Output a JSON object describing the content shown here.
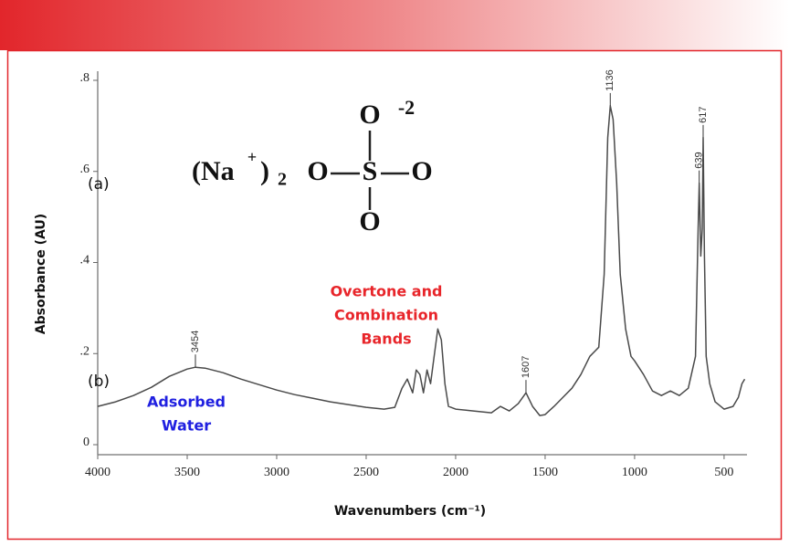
{
  "chart_data": {
    "type": "line",
    "xlabel": "Wavenumbers (cm⁻¹)",
    "ylabel": "Absorbance (AU)",
    "xlim": [
      4000,
      372
    ],
    "ylim": [
      -0.022,
      0.82
    ],
    "xticks": [
      4000,
      3500,
      3000,
      2500,
      2000,
      1500,
      1000,
      500
    ],
    "yticks": [
      0,
      {
        "value": 0.2,
        "label": ".2"
      },
      {
        "value": 0.4,
        "label": ".4"
      },
      {
        "value": 0.6,
        "label": ".6"
      },
      {
        "value": 0.8,
        "label": ".8"
      }
    ],
    "x": [
      4000,
      3900,
      3800,
      3700,
      3600,
      3500,
      3454,
      3400,
      3300,
      3200,
      3100,
      3000,
      2900,
      2800,
      2700,
      2600,
      2500,
      2400,
      2340,
      2300,
      2270,
      2240,
      2220,
      2200,
      2180,
      2160,
      2140,
      2120,
      2100,
      2080,
      2060,
      2040,
      2000,
      1900,
      1800,
      1750,
      1700,
      1650,
      1607,
      1570,
      1530,
      1500,
      1450,
      1400,
      1350,
      1300,
      1250,
      1200,
      1170,
      1150,
      1136,
      1120,
      1100,
      1080,
      1050,
      1020,
      1000,
      950,
      900,
      850,
      800,
      750,
      700,
      660,
      645,
      639,
      630,
      622,
      617,
      610,
      600,
      580,
      550,
      500,
      450,
      420,
      400,
      385
    ],
    "series": [
      {
        "color": "#4a4a4a",
        "values": [
          0.084,
          0.094,
          0.108,
          0.126,
          0.15,
          0.166,
          0.17,
          0.168,
          0.158,
          0.144,
          0.132,
          0.12,
          0.11,
          0.102,
          0.094,
          0.088,
          0.082,
          0.078,
          0.082,
          0.124,
          0.144,
          0.114,
          0.164,
          0.154,
          0.114,
          0.164,
          0.134,
          0.194,
          0.254,
          0.23,
          0.134,
          0.084,
          0.078,
          0.074,
          0.07,
          0.084,
          0.074,
          0.09,
          0.114,
          0.084,
          0.064,
          0.066,
          0.084,
          0.104,
          0.124,
          0.154,
          0.194,
          0.214,
          0.374,
          0.674,
          0.744,
          0.714,
          0.574,
          0.374,
          0.254,
          0.194,
          0.184,
          0.154,
          0.118,
          0.108,
          0.118,
          0.108,
          0.124,
          0.194,
          0.474,
          0.574,
          0.414,
          0.474,
          0.674,
          0.414,
          0.194,
          0.134,
          0.094,
          0.078,
          0.084,
          0.104,
          0.134,
          0.144
        ]
      }
    ],
    "peaks": [
      {
        "x": 3454,
        "y": 0.17
      },
      {
        "x": 1607,
        "y": 0.114
      },
      {
        "x": 1136,
        "y": 0.744
      },
      {
        "x": 639,
        "y": 0.574
      },
      {
        "x": 617,
        "y": 0.674
      }
    ],
    "overtone_label": [
      "Overtone and",
      "Combination",
      "Bands"
    ],
    "water_label": [
      "Adsorbed",
      "Water"
    ],
    "panel_labels": [
      "(a)",
      "(b)"
    ],
    "structure": {
      "cation": "(Na",
      "plus": "+",
      "close": ")",
      "subscript": "2",
      "oxygen": "O",
      "sulfur": "S",
      "charge": "-2"
    }
  }
}
